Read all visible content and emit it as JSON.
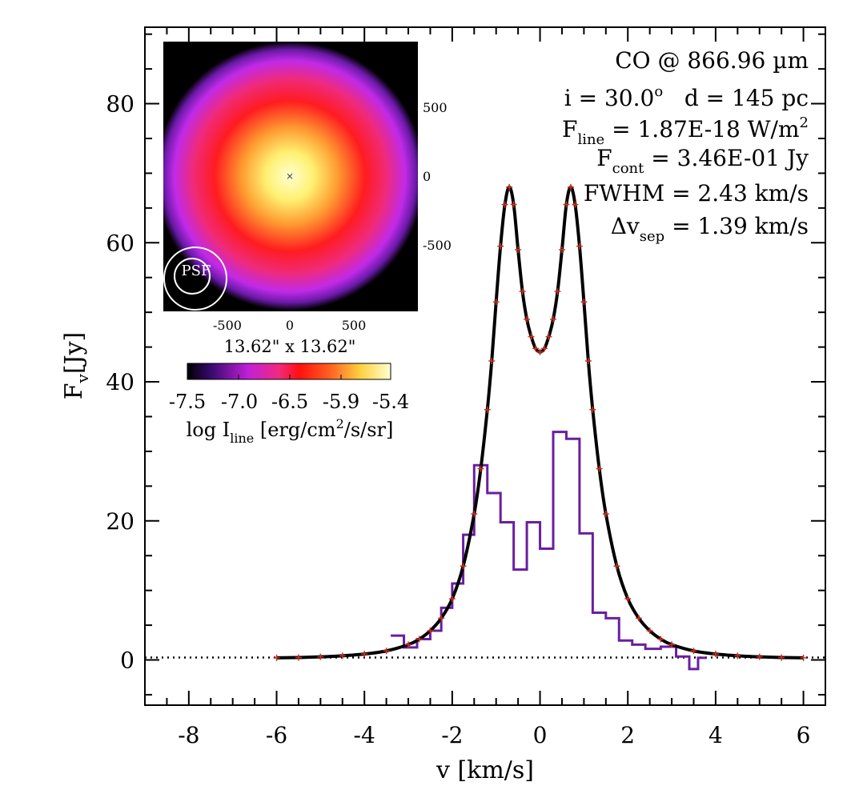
{
  "chart_data": {
    "type": "line",
    "xlabel": "v [km/s]",
    "ylabel_main": "F",
    "ylabel_sub": "v",
    "ylabel_unit": "[Jy]",
    "xlim": [
      -9,
      6.5
    ],
    "ylim": [
      -6.5,
      91
    ],
    "x_ticks": [
      -8,
      -6,
      -4,
      -2,
      0,
      2,
      4,
      6
    ],
    "x_tick_labels": [
      "-8",
      "-6",
      "-4",
      "-2",
      "0",
      "2",
      "4",
      "6"
    ],
    "y_ticks": [
      0,
      20,
      40,
      60,
      80
    ],
    "y_tick_labels": [
      "0",
      "20",
      "40",
      "60",
      "80"
    ],
    "model_line": {
      "name": "",
      "color": "#000000",
      "x": [
        -6.0,
        -5.5,
        -5.0,
        -4.5,
        -4.0,
        -3.5,
        -3.0,
        -2.75,
        -2.5,
        -2.25,
        -2.0,
        -1.75,
        -1.5,
        -1.35,
        -1.2,
        -1.1,
        -1.0,
        -0.9,
        -0.8,
        -0.7,
        -0.6,
        -0.5,
        -0.4,
        -0.3,
        -0.2,
        -0.1,
        0.0,
        0.1,
        0.2,
        0.3,
        0.4,
        0.5,
        0.6,
        0.7,
        0.8,
        0.9,
        1.0,
        1.1,
        1.2,
        1.35,
        1.5,
        1.75,
        2.0,
        2.25,
        2.5,
        2.75,
        3.0,
        3.5,
        4.0,
        4.5,
        5.0,
        5.5,
        6.0
      ],
      "y": [
        0.3,
        0.35,
        0.45,
        0.6,
        0.85,
        1.3,
        2.2,
        3.0,
        4.2,
        6.0,
        8.8,
        13.5,
        21.0,
        27.5,
        36.0,
        43.0,
        51.5,
        59.5,
        65.5,
        68.0,
        65.5,
        59.0,
        53.0,
        49.0,
        46.5,
        44.8,
        44.3,
        44.8,
        46.5,
        49.0,
        53.0,
        59.0,
        65.5,
        68.0,
        65.5,
        59.5,
        51.5,
        43.0,
        36.0,
        27.5,
        21.0,
        13.5,
        8.8,
        6.0,
        4.2,
        3.0,
        2.2,
        1.3,
        0.85,
        0.6,
        0.45,
        0.35,
        0.3
      ]
    },
    "model_points_color": "#d03020",
    "observed_histogram": {
      "name": "",
      "color": "#6a1ea0",
      "edges": [
        -3.4,
        -3.1,
        -2.8,
        -2.5,
        -2.25,
        -2.0,
        -1.75,
        -1.5,
        -1.2,
        -0.9,
        -0.6,
        -0.3,
        0.0,
        0.3,
        0.6,
        0.9,
        1.2,
        1.5,
        1.8,
        2.1,
        2.4,
        2.75,
        3.1,
        3.4,
        3.6,
        3.8
      ],
      "values": [
        3.5,
        1.8,
        3.0,
        4.2,
        7.5,
        11.0,
        18.0,
        28.0,
        24.0,
        19.8,
        13.0,
        19.8,
        16.0,
        32.8,
        31.8,
        18.2,
        6.8,
        6.0,
        2.8,
        2.2,
        1.6,
        1.9,
        0.5,
        -1.3,
        0.3
      ]
    },
    "continuum": {
      "value": 0.35,
      "style": "dotted"
    }
  },
  "info": {
    "line1": "CO @ 866.96 µm",
    "line2_i": "i = 30.0",
    "line2_deg": "o",
    "line2_d": "d = 145 pc",
    "fline_label": "F",
    "fline_sub": "line",
    "fline_value": " = 1.87E-18 W/m",
    "fline_sup": "2",
    "fcont_label": "F",
    "fcont_sub": "cont",
    "fcont_value": " = 3.46E-01 Jy",
    "fwhm": "FWHM = 2.43 km/s",
    "dvsep_label": "Δv",
    "dvsep_sub": "sep",
    "dvsep_value": " = 1.39 km/s"
  },
  "inset": {
    "x_tick_labels": [
      "-500",
      "0",
      "500"
    ],
    "y_tick_labels": [
      "500",
      "0",
      "-500"
    ],
    "size_label": "13.62\" x 13.62\"",
    "psf_label": "PSF"
  },
  "colorbar": {
    "tick_labels": [
      "-7.5",
      "-7.0",
      "-6.5",
      "-5.9",
      "-5.4"
    ],
    "label_main": "log I",
    "label_sub": "line",
    "label_unit": " [erg/cm",
    "label_sup": "2",
    "label_end": "/s/sr]"
  }
}
